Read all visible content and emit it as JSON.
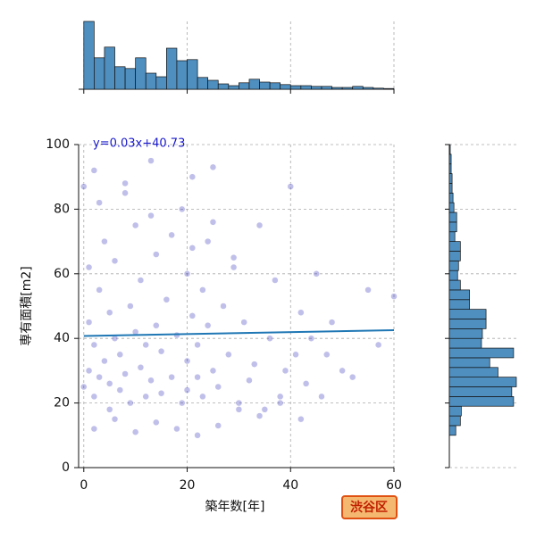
{
  "chart_data": {
    "type": "joint-scatter",
    "x_label": "築年数[年]",
    "y_label": "専有面積[m2]",
    "badge": "渋谷区",
    "point_color": "#2a2ab8",
    "hist_color": "#4f8fc0",
    "line_color": "#1f77b4",
    "grid": true,
    "xlim": [
      -1,
      60
    ],
    "xticks": [
      0,
      20,
      40,
      60
    ],
    "ylim": [
      0,
      100
    ],
    "yticks": [
      0,
      20,
      40,
      60,
      80,
      100
    ],
    "x": [
      0,
      0,
      1,
      1,
      1,
      2,
      2,
      2,
      3,
      3,
      4,
      4,
      5,
      5,
      5,
      6,
      6,
      7,
      7,
      8,
      8,
      9,
      9,
      10,
      10,
      11,
      11,
      12,
      12,
      13,
      13,
      14,
      14,
      15,
      15,
      16,
      17,
      18,
      19,
      19,
      20,
      20,
      20,
      21,
      21,
      22,
      22,
      23,
      23,
      24,
      24,
      25,
      25,
      26,
      27,
      28,
      29,
      30,
      31,
      32,
      33,
      34,
      35,
      36,
      37,
      38,
      39,
      40,
      41,
      42,
      42,
      43,
      44,
      45,
      46,
      47,
      48,
      50,
      52,
      55,
      57,
      60,
      2,
      6,
      10,
      14,
      18,
      22,
      26,
      30,
      34,
      38,
      3,
      8,
      13,
      17,
      21,
      25,
      29
    ],
    "y": [
      87,
      25,
      62,
      30,
      45,
      92,
      38,
      22,
      55,
      28,
      70,
      33,
      48,
      26,
      18,
      40,
      64,
      24,
      35,
      85,
      29,
      50,
      20,
      42,
      75,
      31,
      58,
      22,
      38,
      95,
      27,
      44,
      66,
      23,
      36,
      52,
      28,
      41,
      80,
      20,
      33,
      60,
      24,
      47,
      90,
      28,
      38,
      55,
      22,
      70,
      44,
      30,
      93,
      25,
      50,
      35,
      62,
      20,
      45,
      27,
      32,
      75,
      18,
      40,
      58,
      22,
      30,
      87,
      35,
      15,
      48,
      26,
      40,
      60,
      22,
      35,
      45,
      30,
      28,
      55,
      38,
      53,
      12,
      15,
      11,
      14,
      12,
      10,
      13,
      18,
      16,
      20,
      82,
      88,
      78,
      72,
      68,
      76,
      65
    ],
    "regression": {
      "label": "y=0.03x+40.73",
      "slope": 0.03,
      "intercept": 40.73
    },
    "x_hist": {
      "bins": [
        0,
        2,
        4,
        6,
        8,
        10,
        12,
        14,
        16,
        18,
        20,
        22,
        24,
        26,
        28,
        30,
        32,
        34,
        36,
        38,
        40,
        42,
        44,
        46,
        48,
        50,
        52,
        54,
        56,
        58,
        60
      ],
      "counts": [
        190,
        88,
        118,
        63,
        58,
        88,
        45,
        35,
        115,
        80,
        83,
        33,
        25,
        15,
        10,
        18,
        28,
        20,
        18,
        13,
        10,
        10,
        8,
        8,
        5,
        5,
        8,
        5,
        3,
        2
      ]
    },
    "y_hist": {
      "bins": [
        10,
        13,
        16,
        19,
        22,
        25,
        28,
        31,
        34,
        37,
        40,
        43,
        46,
        49,
        52,
        55,
        58,
        61,
        64,
        67,
        70,
        73,
        76,
        79,
        82,
        85,
        88,
        91,
        94,
        97,
        100
      ],
      "counts": [
        7,
        12,
        13,
        70,
        68,
        73,
        53,
        44,
        70,
        35,
        36,
        40,
        40,
        22,
        22,
        12,
        9,
        10,
        12,
        12,
        6,
        8,
        8,
        5,
        4,
        3,
        3,
        2,
        2,
        1
      ]
    }
  }
}
